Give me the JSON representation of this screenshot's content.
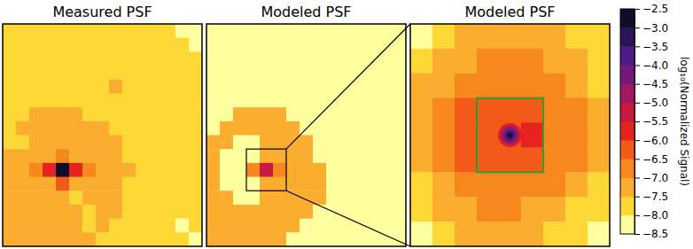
{
  "chart_data": [
    {
      "type": "heatmap",
      "title": "Measured PSF",
      "tick_labels": false,
      "cells": [
        [
          -7.75,
          -7.75,
          -7.75,
          -7.75,
          -7.75,
          -7.75,
          -7.75,
          -7.75,
          -7.75,
          -7.75,
          -7.75,
          -7.75,
          -7.75,
          -8.25,
          -8.25
        ],
        [
          -7.75,
          -7.75,
          -7.75,
          -7.75,
          -7.75,
          -7.75,
          -7.75,
          -7.75,
          -7.75,
          -7.75,
          -7.75,
          -7.75,
          -7.75,
          -7.75,
          -8.25
        ],
        [
          -7.75,
          -7.75,
          -7.75,
          -7.75,
          -7.75,
          -7.75,
          -7.75,
          -7.75,
          -7.75,
          -7.75,
          -7.75,
          -7.75,
          -7.75,
          -7.75,
          -7.75
        ],
        [
          -7.75,
          -7.75,
          -7.75,
          -7.75,
          -7.75,
          -7.75,
          -7.75,
          -7.75,
          -7.75,
          -7.75,
          -7.75,
          -7.75,
          -7.75,
          -7.75,
          -7.75
        ],
        [
          -7.75,
          -7.75,
          -7.75,
          -7.75,
          -7.75,
          -7.75,
          -7.75,
          -7.75,
          -7.25,
          -7.75,
          -7.75,
          -7.75,
          -7.75,
          -7.75,
          -7.75
        ],
        [
          -7.75,
          -7.75,
          -7.75,
          -7.75,
          -7.75,
          -7.75,
          -7.75,
          -7.75,
          -7.75,
          -7.75,
          -7.75,
          -7.75,
          -7.75,
          -7.75,
          -7.75
        ],
        [
          -7.75,
          -7.75,
          -7.25,
          -7.25,
          -7.25,
          -7.25,
          -7.75,
          -7.75,
          -7.75,
          -7.75,
          -7.75,
          -7.75,
          -7.75,
          -7.75,
          -7.75
        ],
        [
          -7.75,
          -7.25,
          -7.25,
          -7.25,
          -7.25,
          -7.25,
          -7.25,
          -7.25,
          -7.75,
          -7.75,
          -7.75,
          -7.75,
          -7.75,
          -7.75,
          -7.75
        ],
        [
          -7.75,
          -7.75,
          -7.25,
          -7.25,
          -7.25,
          -7.25,
          -7.25,
          -7.25,
          -7.25,
          -7.75,
          -7.75,
          -7.75,
          -7.75,
          -7.75,
          -7.75
        ],
        [
          -7.25,
          -7.25,
          -7.25,
          -7.25,
          -6.75,
          -7.25,
          -7.25,
          -7.25,
          -7.25,
          -7.75,
          -7.75,
          -7.75,
          -7.75,
          -7.75,
          -7.75
        ],
        [
          -7.25,
          -7.25,
          -6.75,
          -5.75,
          -2.75,
          -5.75,
          -6.75,
          -7.25,
          -7.25,
          -7.25,
          -7.75,
          -7.75,
          -7.75,
          -7.75,
          -7.75
        ],
        [
          -7.25,
          -7.25,
          -7.25,
          -7.25,
          -6.25,
          -7.25,
          -7.25,
          -7.25,
          -7.25,
          -7.75,
          -7.75,
          -7.75,
          -7.75,
          -7.75,
          -7.75
        ],
        [
          -7.25,
          -7.25,
          -7.25,
          -7.25,
          -7.25,
          -7.75,
          -7.25,
          -7.25,
          -7.25,
          -7.75,
          -7.75,
          -7.75,
          -7.75,
          -7.75,
          -7.75
        ],
        [
          -7.25,
          -7.25,
          -7.25,
          -7.25,
          -7.25,
          -7.25,
          -7.75,
          -7.25,
          -7.25,
          -7.75,
          -7.75,
          -7.75,
          -7.75,
          -7.75,
          -7.75
        ],
        [
          -7.25,
          -7.25,
          -7.25,
          -7.25,
          -7.25,
          -7.25,
          -7.75,
          -7.25,
          -7.75,
          -7.75,
          -7.75,
          -7.75,
          -7.75,
          -8.25,
          -7.75
        ],
        [
          -7.25,
          -7.25,
          -7.25,
          -7.25,
          -7.25,
          -7.25,
          -7.25,
          -7.75,
          -7.75,
          -7.75,
          -7.75,
          -7.75,
          -7.75,
          -7.75,
          -8.25
        ]
      ]
    },
    {
      "type": "heatmap",
      "title": "Modeled PSF",
      "tick_labels": false,
      "cells": [
        [
          -8.25,
          -8.25,
          -8.25,
          -8.25,
          -8.25,
          -8.25,
          -8.25,
          -8.25,
          -8.25,
          -8.25,
          -8.25,
          -8.25,
          -8.25,
          -8.25,
          -8.25
        ],
        [
          -8.25,
          -8.25,
          -8.25,
          -8.25,
          -8.25,
          -8.25,
          -8.25,
          -8.25,
          -8.25,
          -8.25,
          -8.25,
          -8.25,
          -8.25,
          -8.25,
          -8.25
        ],
        [
          -8.25,
          -8.25,
          -8.25,
          -8.25,
          -8.25,
          -8.25,
          -8.25,
          -8.25,
          -8.25,
          -8.25,
          -8.25,
          -8.25,
          -8.25,
          -8.25,
          -8.25
        ],
        [
          -8.25,
          -8.25,
          -8.25,
          -8.25,
          -8.25,
          -8.25,
          -8.25,
          -8.25,
          -8.25,
          -8.25,
          -8.25,
          -8.25,
          -8.25,
          -8.25,
          -8.25
        ],
        [
          -8.25,
          -8.25,
          -8.25,
          -8.25,
          -8.25,
          -8.25,
          -8.25,
          -8.25,
          -8.25,
          -8.25,
          -8.25,
          -8.25,
          -8.25,
          -8.25,
          -8.25
        ],
        [
          -8.25,
          -8.25,
          -8.25,
          -8.25,
          -8.25,
          -8.25,
          -8.25,
          -8.25,
          -8.25,
          -8.25,
          -8.25,
          -8.25,
          -8.25,
          -8.25,
          -8.25
        ],
        [
          -8.25,
          -8.25,
          -7.25,
          -7.25,
          -7.25,
          -7.25,
          -8.25,
          -8.25,
          -8.25,
          -8.25,
          -8.25,
          -8.25,
          -8.25,
          -8.25,
          -8.25
        ],
        [
          -8.25,
          -7.25,
          -7.25,
          -7.25,
          -7.25,
          -7.25,
          -7.25,
          -8.25,
          -8.25,
          -8.25,
          -8.25,
          -8.25,
          -8.25,
          -8.25,
          -8.25
        ],
        [
          -7.25,
          -7.25,
          -8.25,
          -8.25,
          -7.25,
          -7.25,
          -7.25,
          -7.25,
          -8.25,
          -8.25,
          -8.25,
          -8.25,
          -8.25,
          -8.25,
          -8.25
        ],
        [
          -7.25,
          -8.25,
          -8.25,
          -8.25,
          -7.25,
          -7.25,
          -7.25,
          -7.25,
          -8.25,
          -8.25,
          -8.25,
          -8.25,
          -8.25,
          -8.25,
          -8.25
        ],
        [
          -7.25,
          -8.25,
          -8.25,
          -6.75,
          -5.25,
          -6.75,
          -7.25,
          -7.25,
          -7.25,
          -8.25,
          -8.25,
          -8.25,
          -8.25,
          -8.25,
          -8.25
        ],
        [
          -7.25,
          -8.25,
          -8.25,
          -8.25,
          -7.25,
          -7.25,
          -7.25,
          -7.25,
          -7.25,
          -8.25,
          -8.25,
          -8.25,
          -8.25,
          -8.25,
          -8.25
        ],
        [
          -7.25,
          -7.25,
          -8.25,
          -8.25,
          -7.25,
          -7.25,
          -7.25,
          -7.25,
          -7.25,
          -8.25,
          -8.25,
          -8.25,
          -8.25,
          -8.25,
          -8.25
        ],
        [
          -7.25,
          -7.25,
          -7.25,
          -7.25,
          -7.25,
          -7.25,
          -7.25,
          -7.25,
          -8.25,
          -8.25,
          -8.25,
          -8.25,
          -8.25,
          -8.25,
          -8.25
        ],
        [
          -7.25,
          -7.25,
          -7.25,
          -7.25,
          -7.25,
          -7.25,
          -7.25,
          -8.25,
          -8.25,
          -8.25,
          -8.25,
          -8.25,
          -8.25,
          -8.25,
          -8.25
        ],
        [
          -7.25,
          -7.25,
          -7.25,
          -7.25,
          -7.25,
          -7.25,
          -8.25,
          -8.25,
          -8.25,
          -8.25,
          -8.25,
          -8.25,
          -8.25,
          -8.25,
          -8.25
        ]
      ]
    },
    {
      "type": "heatmap",
      "title": "Modeled PSF",
      "tick_labels": false,
      "cells": [
        [
          -8.25,
          -7.75,
          -7.25,
          -7.25,
          -7.25,
          -7.25,
          -7.25,
          -7.75,
          -7.75
        ],
        [
          -7.75,
          -7.25,
          -7.25,
          -6.75,
          -6.75,
          -6.75,
          -7.25,
          -7.25,
          -7.75
        ],
        [
          -7.25,
          -7.25,
          -6.75,
          -6.75,
          -6.75,
          -6.75,
          -6.75,
          -7.25,
          -7.75
        ],
        [
          -7.25,
          -6.75,
          -6.25,
          -6.25,
          -6.25,
          -6.25,
          -6.75,
          -6.75,
          -7.25
        ],
        [
          -7.25,
          -6.75,
          -6.25,
          -6.25,
          -6.25,
          -5.75,
          -6.75,
          -6.75,
          -7.25
        ],
        [
          -7.25,
          -6.75,
          -6.25,
          -6.25,
          -6.25,
          -6.25,
          -6.75,
          -6.75,
          -7.25
        ],
        [
          -7.75,
          -7.25,
          -6.75,
          -6.75,
          -6.75,
          -6.75,
          -6.75,
          -7.25,
          -7.75
        ],
        [
          -7.75,
          -7.25,
          -7.25,
          -6.75,
          -6.75,
          -7.25,
          -7.25,
          -7.75,
          -7.75
        ],
        [
          -8.25,
          -7.75,
          -7.25,
          -7.25,
          -7.25,
          -7.25,
          -7.75,
          -7.75,
          -8.25
        ]
      ],
      "core": [
        -5.75,
        -5.25,
        -4.75,
        -4.25,
        -3.75,
        -3.25,
        -2.75
      ],
      "colorbar": {
        "label": "log₁₀(Normalized Signal)",
        "clim": [
          -8.5,
          -2.5
        ],
        "ticks": [
          {
            "value": -8.5,
            "label": "−8.5"
          },
          {
            "value": -8.0,
            "label": "−8.0"
          },
          {
            "value": -7.5,
            "label": "−7.5"
          },
          {
            "value": -7.0,
            "label": "−7.0"
          },
          {
            "value": -6.5,
            "label": "−6.5"
          },
          {
            "value": -6.0,
            "label": "−6.0"
          },
          {
            "value": -5.5,
            "label": "−5.5"
          },
          {
            "value": -5.0,
            "label": "−5.0"
          },
          {
            "value": -4.5,
            "label": "−4.5"
          },
          {
            "value": -4.0,
            "label": "−4.0"
          },
          {
            "value": -3.5,
            "label": "−3.5"
          },
          {
            "value": -3.0,
            "label": "−3.0"
          },
          {
            "value": -2.5,
            "label": "−2.5"
          }
        ],
        "colors": [
          "#ffffa0",
          "#fdd835",
          "#fbad30",
          "#f7881e",
          "#f25a1a",
          "#e52420",
          "#c81a40",
          "#a0185e",
          "#76187a",
          "#4e1c86",
          "#2c1458",
          "#100c2c"
        ]
      }
    }
  ]
}
